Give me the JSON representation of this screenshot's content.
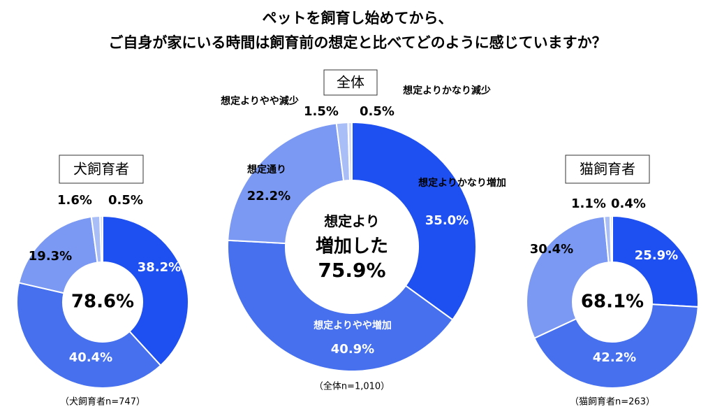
{
  "title": [
    "ペットを飼育し始めてから、",
    "ご自身が家にいる時間は飼育前の想定と比べてどのように感じていますか？"
  ],
  "chart_data": [
    {
      "type": "donut",
      "title": "犬飼育者",
      "values": [
        38.2,
        40.4,
        19.3,
        1.6,
        0.5
      ],
      "value_labels": [
        "38.2%",
        "40.4%",
        "19.3%",
        "1.6%",
        "0.5%"
      ],
      "colors": [
        "#1e4ff0",
        "#4670ee",
        "#7b99f2",
        "#a9bdf6",
        "#d3ddfa"
      ],
      "total": 78.6,
      "total_label": "78.6%",
      "note": "（犬飼育者n=747）"
    },
    {
      "type": "donut",
      "title": "全体",
      "categories": [
        "想定よりかなり増加",
        "想定よりやや増加",
        "想定通り",
        "想定よりやや減少",
        "想定よりかなり減少"
      ],
      "values": [
        35.0,
        40.9,
        22.2,
        1.5,
        0.5
      ],
      "value_labels": [
        "35.0%",
        "40.9%",
        "22.2%",
        "1.5%",
        "0.5%"
      ],
      "colors": [
        "#1e4ff0",
        "#4670ee",
        "#7b99f2",
        "#a9bdf6",
        "#d3ddfa"
      ],
      "center_text": [
        "想定より",
        "増加した"
      ],
      "total": 75.9,
      "total_label": "75.9%",
      "note": "（全体n=1,010）"
    },
    {
      "type": "donut",
      "title": "猫飼育者",
      "values": [
        25.9,
        42.2,
        30.4,
        1.1,
        0.4
      ],
      "value_labels": [
        "25.9%",
        "42.2%",
        "30.4%",
        "1.1%",
        "0.4%"
      ],
      "colors": [
        "#1e4ff0",
        "#4670ee",
        "#7b99f2",
        "#a9bdf6",
        "#d3ddfa"
      ],
      "total": 68.1,
      "total_label": "68.1%",
      "note": "（猫飼育者n=263）"
    }
  ]
}
